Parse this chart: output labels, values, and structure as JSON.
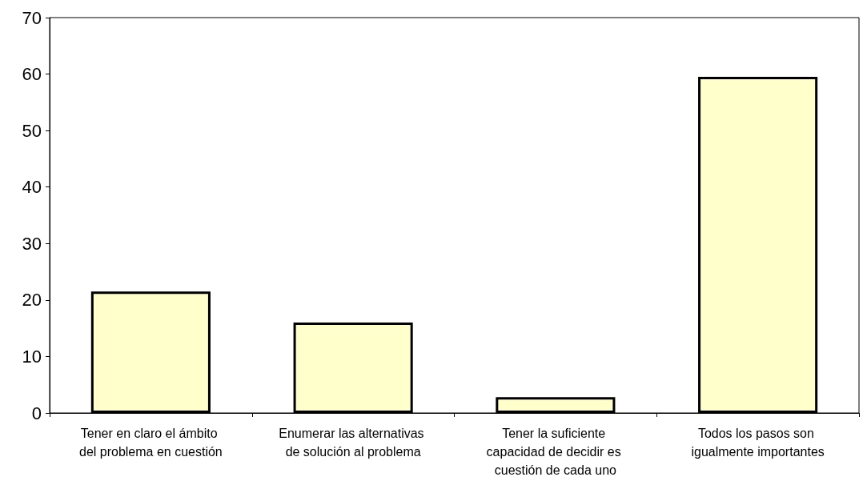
{
  "chart_data": {
    "type": "bar",
    "categories": [
      "Tener en claro el ámbito del problema en cuestión",
      "Enumerar las alternativas de solución al problema",
      "Tener la suficiente capacidad de decidir es cuestión de cada uno",
      "Todos los pasos son igualmente importantes"
    ],
    "values": [
      21.5,
      16,
      2.8,
      59.5
    ],
    "color": "#ffffcc",
    "ylim": [
      0,
      70
    ],
    "yticks": [
      0,
      10,
      20,
      30,
      40,
      50,
      60,
      70
    ],
    "grid": false
  }
}
